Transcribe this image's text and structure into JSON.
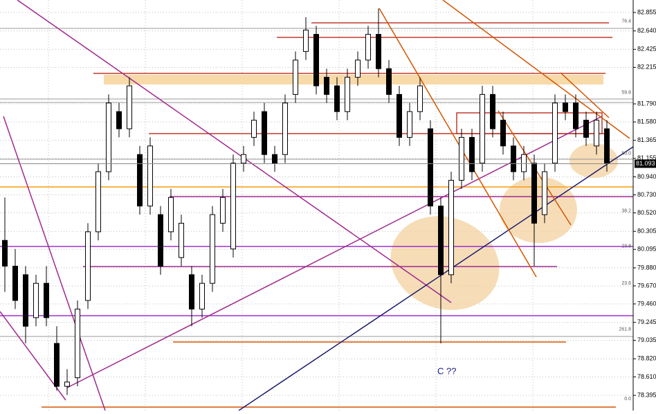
{
  "chart_data": {
    "type": "candlestick",
    "ylim": [
      78.218,
      83.0
    ],
    "yticks": [
      82.855,
      {
        "value": 82.64,
        "label": "82.640"
      },
      82.425,
      82.215,
      {
        "value": 81.79,
        "label": "81.790"
      },
      {
        "value": 81.58,
        "label": "81.580"
      },
      81.365,
      81.155,
      {
        "value": 80.94,
        "label": "80.940"
      },
      {
        "value": 80.73,
        "label": "80.730"
      },
      {
        "value": 80.52,
        "label": "80.520"
      },
      80.305,
      80.095,
      {
        "value": 79.88,
        "label": "79.880"
      },
      {
        "value": 79.67,
        "label": "79.670"
      },
      {
        "value": 79.46,
        "label": "79.460"
      },
      79.245,
      79.035,
      {
        "value": 78.82,
        "label": "78.820"
      },
      {
        "value": 78.61,
        "label": "78.610"
      },
      78.395
    ],
    "grid": true,
    "up_color": "#ffffff",
    "down_color": "#000000",
    "open": [
      80.2,
      79.9,
      79.8,
      79.3,
      79.7,
      79.0,
      78.5,
      78.6,
      79.5,
      80.3,
      81.0,
      81.7,
      81.5,
      81.2,
      80.6,
      80.5,
      80.3,
      80.0,
      79.8,
      79.4,
      79.7,
      80.4,
      80.1,
      81.1,
      81.4,
      81.7,
      81.2,
      81.2,
      81.9,
      82.4,
      82.6,
      82.1,
      82.0,
      81.7,
      82.1,
      82.3,
      82.6,
      82.2,
      81.9,
      81.4,
      81.7,
      81.5,
      80.6,
      79.8,
      80.9,
      81.4,
      81.1,
      81.9,
      81.6,
      81.3,
      81.0,
      81.1,
      80.5,
      81.1,
      81.8,
      81.8,
      81.6,
      81.3,
      81.5
    ],
    "high": [
      80.7,
      80.1,
      79.9,
      79.8,
      79.9,
      79.2,
      78.7,
      79.5,
      80.4,
      81.1,
      81.9,
      81.8,
      82.1,
      81.3,
      81.4,
      80.6,
      80.8,
      80.5,
      79.9,
      79.8,
      80.6,
      80.8,
      81.2,
      81.3,
      81.7,
      81.8,
      81.3,
      81.9,
      82.4,
      82.8,
      82.7,
      82.2,
      82.1,
      82.2,
      82.4,
      82.7,
      82.9,
      82.3,
      82.0,
      81.8,
      82.1,
      81.6,
      80.7,
      81.0,
      81.5,
      81.5,
      82.0,
      82.0,
      81.7,
      81.4,
      81.3,
      81.2,
      81.1,
      81.9,
      81.9,
      81.9,
      81.7,
      81.7,
      81.6
    ],
    "low": [
      79.6,
      79.4,
      79.0,
      79.2,
      79.2,
      78.45,
      78.4,
      78.5,
      79.4,
      80.2,
      80.9,
      81.4,
      81.4,
      80.5,
      80.5,
      79.8,
      80.2,
      79.9,
      79.2,
      79.3,
      79.6,
      80.3,
      80.0,
      81.0,
      81.3,
      81.1,
      81.0,
      81.1,
      81.8,
      82.3,
      81.9,
      81.8,
      81.6,
      81.6,
      82.0,
      82.2,
      82.1,
      81.8,
      81.3,
      81.3,
      81.6,
      80.5,
      79.0,
      79.7,
      80.8,
      80.9,
      81.0,
      81.4,
      81.2,
      80.9,
      80.9,
      79.9,
      80.4,
      81.0,
      81.6,
      81.4,
      81.3,
      81.2,
      81.0
    ],
    "close": [
      79.9,
      79.5,
      79.2,
      79.7,
      79.3,
      78.5,
      78.55,
      79.4,
      80.3,
      81.0,
      81.8,
      81.5,
      82.0,
      80.6,
      81.3,
      79.9,
      80.7,
      80.4,
      79.4,
      79.7,
      80.5,
      80.7,
      81.1,
      81.2,
      81.6,
      81.2,
      81.1,
      81.8,
      82.3,
      82.65,
      82.0,
      81.9,
      81.7,
      82.1,
      82.3,
      82.6,
      82.2,
      81.9,
      81.4,
      81.7,
      82.0,
      80.6,
      79.8,
      80.9,
      81.4,
      81.0,
      81.9,
      81.5,
      81.3,
      81.0,
      81.2,
      80.4,
      81.0,
      81.8,
      81.7,
      81.5,
      81.4,
      81.6,
      81.093
    ],
    "last_price": 81.093,
    "fib_labels": [
      {
        "label": "76.4",
        "value": 82.72
      },
      {
        "label": "59.8",
        "value": 81.89
      },
      {
        "label": "50.0",
        "value": 81.18
      },
      {
        "label": "38.2",
        "value": 80.51
      },
      {
        "label": "23.8",
        "value": 80.1
      },
      {
        "label": "23.6",
        "value": 79.67
      },
      {
        "label": "261.8",
        "value": 79.13
      },
      {
        "label": "0.0",
        "value": 78.32
      }
    ],
    "annotation": "C ??"
  }
}
